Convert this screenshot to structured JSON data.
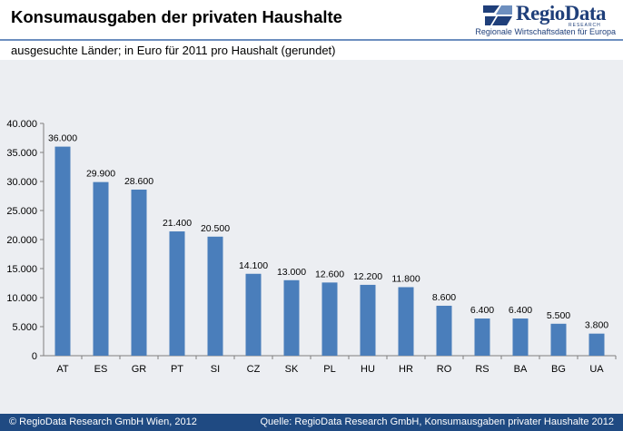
{
  "header": {
    "title": "Konsumausgaben der privaten Haushalte",
    "subtitle": "ausgesuchte Länder; in Euro für 2011 pro Haushalt (gerundet)"
  },
  "logo": {
    "name": "RegioData",
    "sub": "RESEARCH",
    "tagline": "Regionale Wirtschaftsdaten für Europa"
  },
  "footer": {
    "left": "© RegioData Research GmbH Wien, 2012",
    "right": "Quelle: RegioData Research GmbH, Konsumausgaben privater Haushalte 2012"
  },
  "colors": {
    "bar": "#4a7ebb",
    "footer": "#1f4a82",
    "panel": "#eceef2"
  },
  "chart_data": {
    "type": "bar",
    "title": "Konsumausgaben der privaten Haushalte",
    "xlabel": "",
    "ylabel": "",
    "categories": [
      "AT",
      "ES",
      "GR",
      "PT",
      "SI",
      "CZ",
      "SK",
      "PL",
      "HU",
      "HR",
      "RO",
      "RS",
      "BA",
      "BG",
      "UA"
    ],
    "values": [
      36000,
      29900,
      28600,
      21400,
      20500,
      14100,
      13000,
      12600,
      12200,
      11800,
      8600,
      6400,
      6400,
      5500,
      3800
    ],
    "value_labels": [
      "36.000",
      "29.900",
      "28.600",
      "21.400",
      "20.500",
      "14.100",
      "13.000",
      "12.600",
      "12.200",
      "11.800",
      "8.600",
      "6.400",
      "6.400",
      "5.500",
      "3.800"
    ],
    "ylim": [
      0,
      40000
    ],
    "yticks": [
      0,
      5000,
      10000,
      15000,
      20000,
      25000,
      30000,
      35000,
      40000
    ],
    "ytick_labels": [
      "0",
      "5.000",
      "10.000",
      "15.000",
      "20.000",
      "25.000",
      "30.000",
      "35.000",
      "40.000"
    ],
    "grid": false,
    "legend": "none"
  }
}
